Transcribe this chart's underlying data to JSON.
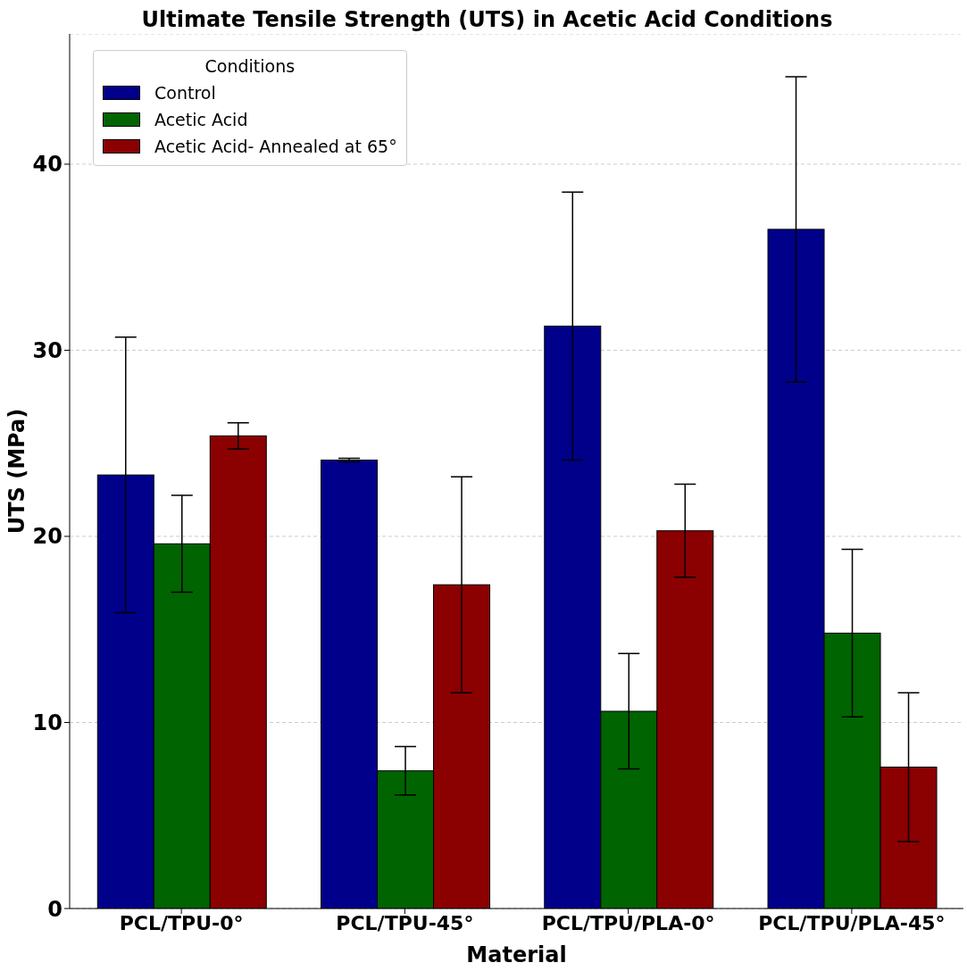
{
  "chart_data": {
    "type": "bar",
    "title": "Ultimate Tensile Strength (UTS) in Acetic Acid Conditions",
    "xlabel": "Material",
    "ylabel": "UTS (MPa)",
    "legend_title": "Conditions",
    "categories": [
      "PCL/TPU-0°",
      "PCL/TPU-45°",
      "PCL/TPU/PLA-0°",
      "PCL/TPU/PLA-45°"
    ],
    "series": [
      {
        "name": "Control",
        "color": "#00008b",
        "values": [
          23.3,
          24.1,
          31.3,
          36.5
        ],
        "errors": [
          7.4,
          0.1,
          7.2,
          8.2
        ]
      },
      {
        "name": "Acetic Acid",
        "color": "#006400",
        "values": [
          19.6,
          7.4,
          10.6,
          14.8
        ],
        "errors": [
          2.6,
          1.3,
          3.1,
          4.5
        ]
      },
      {
        "name": "Acetic Acid- Annealed at 65°",
        "color": "#8b0000",
        "values": [
          25.4,
          17.4,
          20.3,
          7.6
        ],
        "errors": [
          0.7,
          5.8,
          2.5,
          4.0
        ]
      }
    ],
    "ylim": [
      0,
      47
    ],
    "yticks": [
      0,
      10,
      20,
      30,
      40
    ],
    "grid": "y",
    "legend": "top left"
  }
}
